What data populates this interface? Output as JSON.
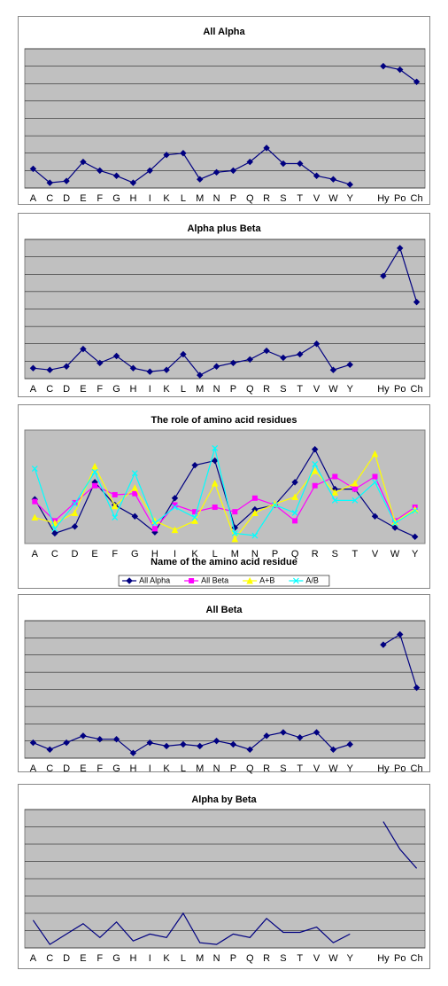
{
  "chart_data": [
    {
      "type": "line",
      "title": "All Alpha",
      "categories": [
        "A",
        "C",
        "D",
        "E",
        "F",
        "G",
        "H",
        "I",
        "K",
        "L",
        "M",
        "N",
        "P",
        "Q",
        "R",
        "S",
        "T",
        "V",
        "W",
        "Y",
        null,
        "Hy",
        "Po",
        "Ch"
      ],
      "values": [
        1.1,
        0.3,
        0.4,
        1.5,
        1.0,
        0.7,
        0.3,
        1.0,
        1.9,
        2.0,
        0.5,
        0.9,
        1.0,
        1.5,
        2.3,
        1.4,
        1.4,
        0.7,
        0.5,
        0.2,
        null,
        7.0,
        6.8,
        6.1
      ],
      "color": "#000080",
      "marker": "diamond",
      "ylim": [
        0,
        8
      ],
      "yticks": [
        0,
        1,
        2,
        3,
        4,
        5,
        6,
        7,
        8
      ],
      "grid": true
    },
    {
      "type": "line",
      "title": "Alpha plus Beta",
      "categories": [
        "A",
        "C",
        "D",
        "E",
        "F",
        "G",
        "H",
        "I",
        "K",
        "L",
        "M",
        "N",
        "P",
        "Q",
        "R",
        "S",
        "T",
        "V",
        "W",
        "Y",
        null,
        "Hy",
        "Po",
        "Ch"
      ],
      "values": [
        0.6,
        0.5,
        0.7,
        1.7,
        0.9,
        1.3,
        0.6,
        0.4,
        0.5,
        1.4,
        0.2,
        0.7,
        0.9,
        1.1,
        1.6,
        1.2,
        1.4,
        2.0,
        0.5,
        0.8,
        null,
        5.9,
        7.5,
        4.4
      ],
      "color": "#000080",
      "marker": "diamond",
      "ylim": [
        0,
        8
      ],
      "yticks": [
        0,
        1,
        2,
        3,
        4,
        5,
        6,
        7,
        8
      ],
      "grid": true
    },
    {
      "type": "line",
      "title": "The role of amino acid residues",
      "x_label": "Name of the amino acid residue",
      "categories": [
        "A",
        "C",
        "D",
        "E",
        "F",
        "G",
        "H",
        "I",
        "K",
        "L",
        "M",
        "N",
        "P",
        "Q",
        "R",
        "S",
        "T",
        "V",
        "W",
        "Y"
      ],
      "series": [
        {
          "name": "All Alpha",
          "color": "#000080",
          "marker": "diamond",
          "values": [
            3.9,
            0.9,
            1.5,
            5.4,
            3.4,
            2.4,
            1.0,
            4.0,
            6.9,
            7.3,
            1.4,
            3.0,
            3.4,
            5.4,
            8.3,
            4.8,
            4.8,
            2.4,
            1.4,
            0.6
          ]
        },
        {
          "name": "All Beta",
          "color": "#ff00ff",
          "marker": "square",
          "values": [
            3.7,
            2.0,
            3.6,
            5.1,
            4.3,
            4.4,
            1.3,
            3.4,
            2.8,
            3.2,
            2.8,
            4.0,
            3.4,
            2.0,
            5.1,
            5.9,
            4.8,
            5.9,
            2.0,
            3.2
          ]
        },
        {
          "name": "A+B",
          "color": "#ffff00",
          "marker": "triangle",
          "values": [
            2.3,
            1.8,
            2.7,
            6.8,
            3.3,
            4.9,
            2.0,
            1.2,
            2.0,
            5.3,
            0.4,
            2.7,
            3.5,
            4.1,
            6.4,
            4.5,
            5.3,
            7.9,
            1.9,
            3.0
          ]
        },
        {
          "name": "A/B",
          "color": "#00ffff",
          "marker": "x",
          "values": [
            6.6,
            1.3,
            3.5,
            6.3,
            2.3,
            6.2,
            1.8,
            3.2,
            2.3,
            8.4,
            0.9,
            0.7,
            3.4,
            2.7,
            7.0,
            3.8,
            3.8,
            5.4,
            1.8,
            2.9
          ]
        }
      ],
      "ylim": [
        0,
        10
      ],
      "grid": false,
      "legend": "bottom"
    },
    {
      "type": "line",
      "title": "All Beta",
      "categories": [
        "A",
        "C",
        "D",
        "E",
        "F",
        "G",
        "H",
        "I",
        "K",
        "L",
        "M",
        "N",
        "P",
        "Q",
        "R",
        "S",
        "T",
        "V",
        "W",
        "Y",
        null,
        "Hy",
        "Po",
        "Ch"
      ],
      "values": [
        0.9,
        0.5,
        0.9,
        1.3,
        1.1,
        1.1,
        0.3,
        0.9,
        0.7,
        0.8,
        0.7,
        1.0,
        0.8,
        0.5,
        1.3,
        1.5,
        1.2,
        1.5,
        0.5,
        0.8,
        null,
        6.6,
        7.2,
        4.1
      ],
      "color": "#000080",
      "marker": "diamond",
      "ylim": [
        0,
        8
      ],
      "yticks": [
        0,
        1,
        2,
        3,
        4,
        5,
        6,
        7,
        8
      ],
      "grid": true
    },
    {
      "type": "line",
      "title": "Alpha by Beta",
      "categories": [
        "A",
        "C",
        "D",
        "E",
        "F",
        "G",
        "H",
        "I",
        "K",
        "L",
        "M",
        "N",
        "P",
        "Q",
        "R",
        "S",
        "T",
        "V",
        "W",
        "Y",
        null,
        "Hy",
        "Po",
        "Ch"
      ],
      "values": [
        1.6,
        0.2,
        0.8,
        1.4,
        0.6,
        1.5,
        0.4,
        0.8,
        0.6,
        2.0,
        0.3,
        0.2,
        0.8,
        0.6,
        1.7,
        0.9,
        0.9,
        1.2,
        0.3,
        0.8,
        null,
        7.3,
        5.7,
        4.6
      ],
      "color": "#000080",
      "marker": "none",
      "ylim": [
        0,
        8
      ],
      "yticks": [
        0,
        1,
        2,
        3,
        4,
        5,
        6,
        7,
        8
      ],
      "grid": true
    }
  ]
}
